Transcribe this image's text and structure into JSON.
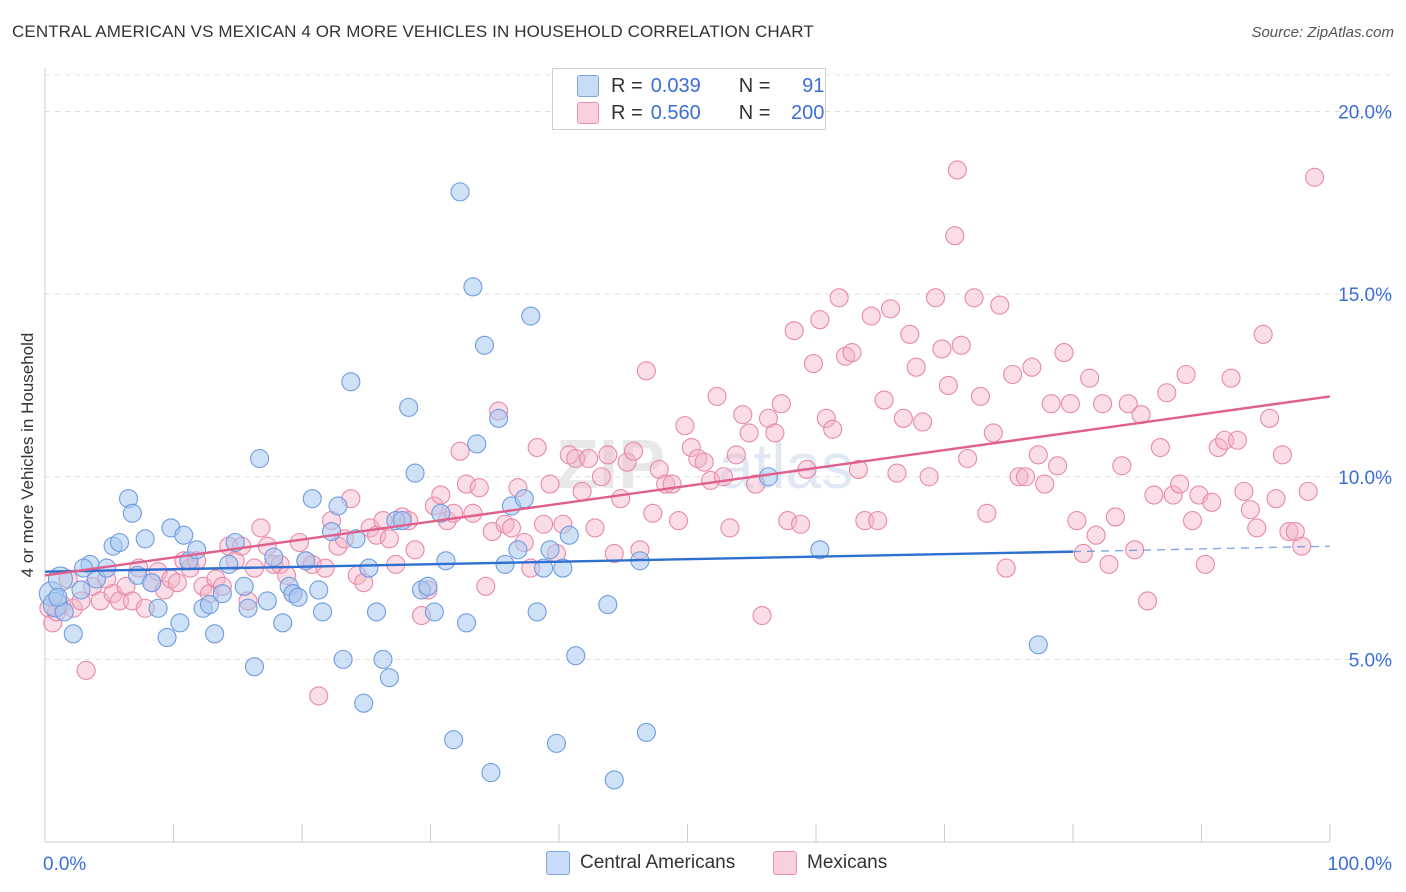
{
  "header": {
    "title": "CENTRAL AMERICAN VS MEXICAN 4 OR MORE VEHICLES IN HOUSEHOLD CORRELATION CHART",
    "source": "Source: ZipAtlas.com"
  },
  "legend": {
    "rows": [
      {
        "r_label": "R =",
        "r_value": "0.039",
        "n_label": "N =",
        "n_value": "91",
        "color": "#a8c8f0"
      },
      {
        "r_label": "R =",
        "r_value": "0.560",
        "n_label": "N =",
        "n_value": "200",
        "color": "#f5b3c8"
      }
    ]
  },
  "colors": {
    "blue_fill": "#a8c8f0",
    "blue_line": "#2f6fd0",
    "pink_fill": "#f5b3c8",
    "pink_line": "#e0608d",
    "tick_text": "#3b6ed6"
  },
  "chart_data": {
    "type": "scatter",
    "xlabel": "",
    "ylabel": "4 or more Vehicles in Household",
    "xlim": [
      0,
      100
    ],
    "ylim": [
      0,
      21
    ],
    "x_tick_labels": [
      "0.0%",
      "100.0%"
    ],
    "y_ticks": [
      5,
      10,
      15,
      20
    ],
    "y_tick_labels": [
      "5.0%",
      "10.0%",
      "15.0%",
      "20.0%"
    ],
    "grid": "dashed horizontal",
    "legend_position": "top-center",
    "series": [
      {
        "name": "Central Americans",
        "r": 0.039,
        "n": 91,
        "trend": {
          "x0": 0,
          "y0": 7.4,
          "x1": 80,
          "y1": 7.95,
          "dashed_to_x": 100,
          "dashed_to_y": 8.1
        },
        "points": [
          [
            0.5,
            6.8
          ],
          [
            0.8,
            6.5
          ],
          [
            1.2,
            7.2
          ],
          [
            1.5,
            6.3
          ],
          [
            2.2,
            5.7
          ],
          [
            2.8,
            6.9
          ],
          [
            3.5,
            7.6
          ],
          [
            4.0,
            7.2
          ],
          [
            4.8,
            7.5
          ],
          [
            5.3,
            8.1
          ],
          [
            5.8,
            8.2
          ],
          [
            6.5,
            9.4
          ],
          [
            6.8,
            9.0
          ],
          [
            7.2,
            7.3
          ],
          [
            7.8,
            8.3
          ],
          [
            8.3,
            7.1
          ],
          [
            8.8,
            6.4
          ],
          [
            9.5,
            5.6
          ],
          [
            9.8,
            8.6
          ],
          [
            10.5,
            6.0
          ],
          [
            10.8,
            8.4
          ],
          [
            11.2,
            7.7
          ],
          [
            11.8,
            8.0
          ],
          [
            12.3,
            6.4
          ],
          [
            12.8,
            6.5
          ],
          [
            13.2,
            5.7
          ],
          [
            13.8,
            6.8
          ],
          [
            14.3,
            7.6
          ],
          [
            14.8,
            8.2
          ],
          [
            15.5,
            7.0
          ],
          [
            15.8,
            6.4
          ],
          [
            16.3,
            4.8
          ],
          [
            16.7,
            10.5
          ],
          [
            17.3,
            6.6
          ],
          [
            17.8,
            7.8
          ],
          [
            18.5,
            6.0
          ],
          [
            19.0,
            7.0
          ],
          [
            19.3,
            6.8
          ],
          [
            19.7,
            6.7
          ],
          [
            20.3,
            7.7
          ],
          [
            20.8,
            9.4
          ],
          [
            21.3,
            6.9
          ],
          [
            21.6,
            6.3
          ],
          [
            22.3,
            8.5
          ],
          [
            22.8,
            9.2
          ],
          [
            23.2,
            5.0
          ],
          [
            23.8,
            12.6
          ],
          [
            24.2,
            8.3
          ],
          [
            24.8,
            3.8
          ],
          [
            25.2,
            7.5
          ],
          [
            25.8,
            6.3
          ],
          [
            26.3,
            5.0
          ],
          [
            26.8,
            4.5
          ],
          [
            27.3,
            8.8
          ],
          [
            27.8,
            8.8
          ],
          [
            28.3,
            11.9
          ],
          [
            28.8,
            10.1
          ],
          [
            29.3,
            6.9
          ],
          [
            29.8,
            7.0
          ],
          [
            30.3,
            6.3
          ],
          [
            30.8,
            9.0
          ],
          [
            31.2,
            7.7
          ],
          [
            31.8,
            2.8
          ],
          [
            32.3,
            17.8
          ],
          [
            32.8,
            6.0
          ],
          [
            33.3,
            15.2
          ],
          [
            33.6,
            10.9
          ],
          [
            34.2,
            13.6
          ],
          [
            34.7,
            1.9
          ],
          [
            35.3,
            11.6
          ],
          [
            35.8,
            7.6
          ],
          [
            36.3,
            9.2
          ],
          [
            36.8,
            8.0
          ],
          [
            37.3,
            9.4
          ],
          [
            37.8,
            14.4
          ],
          [
            38.3,
            6.3
          ],
          [
            38.8,
            7.5
          ],
          [
            39.3,
            8.0
          ],
          [
            39.8,
            2.7
          ],
          [
            40.3,
            7.5
          ],
          [
            40.8,
            8.4
          ],
          [
            41.3,
            5.1
          ],
          [
            43.8,
            6.5
          ],
          [
            44.3,
            1.7
          ],
          [
            46.3,
            7.7
          ],
          [
            46.8,
            3.0
          ],
          [
            56.3,
            10.0
          ],
          [
            60.3,
            8.0
          ],
          [
            77.3,
            5.4
          ],
          [
            1.0,
            6.7
          ],
          [
            3.0,
            7.5
          ]
        ]
      },
      {
        "name": "Mexicans",
        "r": 0.56,
        "n": 200,
        "trend": {
          "x0": 0,
          "y0": 7.3,
          "x1": 100,
          "y1": 12.2
        },
        "points": [
          [
            0.3,
            6.4
          ],
          [
            0.6,
            6.0
          ],
          [
            0.9,
            6.3
          ],
          [
            1.3,
            6.5
          ],
          [
            1.8,
            7.2
          ],
          [
            2.2,
            6.4
          ],
          [
            2.8,
            6.6
          ],
          [
            3.2,
            4.7
          ],
          [
            3.7,
            7.0
          ],
          [
            4.3,
            6.6
          ],
          [
            4.8,
            7.2
          ],
          [
            5.3,
            6.8
          ],
          [
            5.8,
            6.6
          ],
          [
            6.3,
            7.0
          ],
          [
            6.8,
            6.6
          ],
          [
            7.3,
            7.5
          ],
          [
            7.8,
            6.4
          ],
          [
            8.3,
            7.1
          ],
          [
            8.8,
            7.4
          ],
          [
            9.3,
            6.9
          ],
          [
            9.8,
            7.2
          ],
          [
            10.3,
            7.1
          ],
          [
            10.8,
            7.7
          ],
          [
            11.3,
            7.5
          ],
          [
            11.8,
            7.7
          ],
          [
            12.3,
            7.0
          ],
          [
            12.8,
            6.8
          ],
          [
            13.3,
            7.2
          ],
          [
            13.8,
            7.0
          ],
          [
            14.3,
            8.1
          ],
          [
            14.8,
            7.7
          ],
          [
            15.3,
            8.1
          ],
          [
            15.8,
            6.6
          ],
          [
            16.3,
            7.5
          ],
          [
            16.8,
            8.6
          ],
          [
            17.3,
            8.1
          ],
          [
            17.8,
            7.6
          ],
          [
            18.3,
            7.6
          ],
          [
            18.8,
            7.3
          ],
          [
            19.3,
            6.8
          ],
          [
            19.8,
            8.2
          ],
          [
            20.3,
            7.7
          ],
          [
            20.8,
            7.6
          ],
          [
            21.3,
            4.0
          ],
          [
            21.8,
            7.5
          ],
          [
            22.3,
            8.8
          ],
          [
            22.8,
            8.1
          ],
          [
            23.3,
            8.3
          ],
          [
            23.8,
            9.4
          ],
          [
            24.3,
            7.3
          ],
          [
            24.8,
            7.1
          ],
          [
            25.3,
            8.6
          ],
          [
            25.8,
            8.4
          ],
          [
            26.3,
            8.8
          ],
          [
            26.8,
            8.3
          ],
          [
            27.3,
            7.6
          ],
          [
            27.8,
            8.9
          ],
          [
            28.3,
            8.8
          ],
          [
            28.8,
            8.0
          ],
          [
            29.3,
            6.2
          ],
          [
            29.8,
            6.9
          ],
          [
            30.3,
            9.2
          ],
          [
            30.8,
            9.5
          ],
          [
            31.3,
            8.8
          ],
          [
            31.8,
            9.0
          ],
          [
            32.3,
            10.7
          ],
          [
            32.8,
            9.8
          ],
          [
            33.3,
            9.0
          ],
          [
            33.8,
            9.7
          ],
          [
            34.3,
            7.0
          ],
          [
            34.8,
            8.5
          ],
          [
            35.3,
            11.8
          ],
          [
            35.8,
            8.7
          ],
          [
            36.3,
            8.6
          ],
          [
            36.8,
            9.7
          ],
          [
            37.3,
            8.2
          ],
          [
            37.8,
            7.5
          ],
          [
            38.3,
            10.8
          ],
          [
            38.8,
            8.7
          ],
          [
            39.3,
            9.8
          ],
          [
            39.8,
            7.9
          ],
          [
            40.3,
            8.7
          ],
          [
            40.8,
            10.6
          ],
          [
            41.3,
            10.5
          ],
          [
            41.8,
            9.6
          ],
          [
            42.3,
            10.5
          ],
          [
            42.8,
            8.6
          ],
          [
            43.3,
            10.0
          ],
          [
            43.8,
            10.6
          ],
          [
            44.3,
            7.9
          ],
          [
            44.8,
            9.4
          ],
          [
            45.3,
            10.4
          ],
          [
            45.8,
            10.7
          ],
          [
            46.3,
            8.0
          ],
          [
            46.8,
            12.9
          ],
          [
            47.3,
            9.0
          ],
          [
            47.8,
            10.2
          ],
          [
            48.3,
            9.8
          ],
          [
            48.8,
            9.8
          ],
          [
            49.3,
            8.8
          ],
          [
            49.8,
            11.4
          ],
          [
            50.3,
            10.8
          ],
          [
            50.8,
            10.5
          ],
          [
            51.3,
            10.4
          ],
          [
            51.8,
            9.9
          ],
          [
            52.3,
            12.2
          ],
          [
            52.8,
            10.0
          ],
          [
            53.3,
            8.6
          ],
          [
            53.8,
            10.6
          ],
          [
            54.3,
            11.7
          ],
          [
            54.8,
            11.2
          ],
          [
            55.3,
            9.8
          ],
          [
            55.8,
            6.2
          ],
          [
            56.3,
            11.6
          ],
          [
            56.8,
            11.2
          ],
          [
            57.3,
            12.0
          ],
          [
            57.8,
            8.8
          ],
          [
            58.3,
            14.0
          ],
          [
            58.8,
            8.7
          ],
          [
            59.3,
            10.2
          ],
          [
            59.8,
            13.1
          ],
          [
            60.3,
            14.3
          ],
          [
            60.8,
            11.6
          ],
          [
            61.3,
            11.3
          ],
          [
            61.8,
            14.9
          ],
          [
            62.3,
            13.3
          ],
          [
            62.8,
            13.4
          ],
          [
            63.3,
            10.2
          ],
          [
            63.8,
            8.8
          ],
          [
            64.3,
            14.4
          ],
          [
            64.8,
            8.8
          ],
          [
            65.3,
            12.1
          ],
          [
            65.8,
            14.6
          ],
          [
            66.3,
            10.1
          ],
          [
            66.8,
            11.6
          ],
          [
            67.3,
            13.9
          ],
          [
            67.8,
            13.0
          ],
          [
            68.3,
            11.5
          ],
          [
            68.8,
            10.0
          ],
          [
            69.3,
            14.9
          ],
          [
            69.8,
            13.5
          ],
          [
            70.3,
            12.5
          ],
          [
            70.8,
            16.6
          ],
          [
            71.3,
            13.6
          ],
          [
            71.8,
            10.5
          ],
          [
            72.3,
            14.9
          ],
          [
            72.8,
            12.2
          ],
          [
            73.3,
            9.0
          ],
          [
            73.8,
            11.2
          ],
          [
            74.3,
            14.7
          ],
          [
            74.8,
            7.5
          ],
          [
            75.3,
            12.8
          ],
          [
            75.8,
            10.0
          ],
          [
            76.3,
            10.0
          ],
          [
            76.8,
            13.0
          ],
          [
            77.3,
            10.6
          ],
          [
            77.8,
            9.8
          ],
          [
            78.3,
            12.0
          ],
          [
            78.8,
            10.3
          ],
          [
            79.3,
            13.4
          ],
          [
            79.8,
            12.0
          ],
          [
            80.3,
            8.8
          ],
          [
            80.8,
            7.9
          ],
          [
            81.3,
            12.7
          ],
          [
            81.8,
            8.4
          ],
          [
            82.3,
            12.0
          ],
          [
            82.8,
            7.6
          ],
          [
            83.3,
            8.9
          ],
          [
            83.8,
            10.3
          ],
          [
            84.3,
            12.0
          ],
          [
            84.8,
            8.0
          ],
          [
            85.3,
            11.7
          ],
          [
            85.8,
            6.6
          ],
          [
            86.3,
            9.5
          ],
          [
            86.8,
            10.8
          ],
          [
            87.3,
            12.3
          ],
          [
            87.8,
            9.5
          ],
          [
            88.3,
            9.8
          ],
          [
            88.8,
            12.8
          ],
          [
            89.3,
            8.8
          ],
          [
            89.8,
            9.5
          ],
          [
            90.3,
            7.6
          ],
          [
            90.8,
            9.3
          ],
          [
            91.3,
            10.8
          ],
          [
            91.8,
            11.0
          ],
          [
            92.3,
            12.7
          ],
          [
            92.8,
            11.0
          ],
          [
            93.3,
            9.6
          ],
          [
            93.8,
            9.1
          ],
          [
            94.3,
            8.6
          ],
          [
            94.8,
            13.9
          ],
          [
            95.3,
            11.6
          ],
          [
            95.8,
            9.4
          ],
          [
            96.3,
            10.6
          ],
          [
            96.8,
            8.5
          ],
          [
            97.3,
            8.5
          ],
          [
            97.8,
            8.1
          ],
          [
            98.3,
            9.6
          ],
          [
            98.8,
            18.2
          ],
          [
            71.0,
            18.4
          ]
        ]
      }
    ]
  }
}
